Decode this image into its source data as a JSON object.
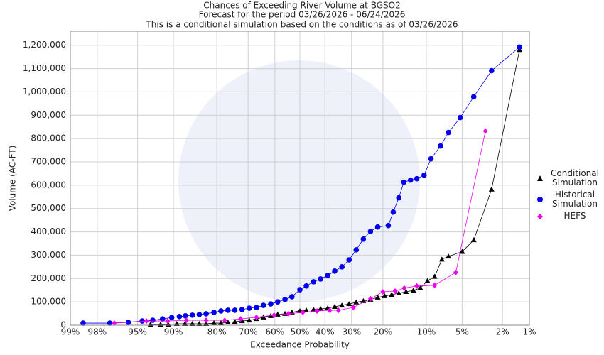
{
  "chart_data": {
    "type": "line",
    "title": "Chances of Exceeding River Volume at BGSO2",
    "subtitle": "Forecast for the period 03/26/2026 - 06/24/2026",
    "note": "This is a conditional simulation based on the conditions as of 03/26/2026",
    "x_label": "Exceedance Probability",
    "y_label": "Volume (AC-FT)",
    "x_scale": "probability",
    "xlim": [
      99,
      1
    ],
    "xticks": [
      {
        "value": 99,
        "label": "99%"
      },
      {
        "value": 98,
        "label": "98%"
      },
      {
        "value": 95,
        "label": "95%"
      },
      {
        "value": 90,
        "label": "90%"
      },
      {
        "value": 80,
        "label": "80%"
      },
      {
        "value": 70,
        "label": "70%"
      },
      {
        "value": 60,
        "label": "60%"
      },
      {
        "value": 50,
        "label": "50%"
      },
      {
        "value": 40,
        "label": "40%"
      },
      {
        "value": 30,
        "label": "30%"
      },
      {
        "value": 20,
        "label": "20%"
      },
      {
        "value": 10,
        "label": "10%"
      },
      {
        "value": 5,
        "label": "5%"
      },
      {
        "value": 2,
        "label": "2%"
      },
      {
        "value": 1,
        "label": "1%"
      }
    ],
    "ylim": [
      0,
      1260000
    ],
    "yticks": [
      0,
      {
        "value": 100000,
        "label": "100,000"
      },
      {
        "value": 200000,
        "label": "200,000"
      },
      {
        "value": 300000,
        "label": "300,000"
      },
      {
        "value": 400000,
        "label": "400,000"
      },
      {
        "value": 500000,
        "label": "500,000"
      },
      {
        "value": 600000,
        "label": "600,000"
      },
      {
        "value": 700000,
        "label": "700,000"
      },
      {
        "value": 800000,
        "label": "800,000"
      },
      {
        "value": 900000,
        "label": "900,000"
      },
      {
        "value": 1000000,
        "label": "1,000,000"
      },
      {
        "value": 1100000,
        "label": "1,100,000"
      },
      {
        "value": 1200000,
        "label": "1,200,000"
      }
    ],
    "grid": true,
    "legend": "right",
    "series": [
      {
        "name": "Conditional Simulation",
        "color": "#000000",
        "marker": "triangle",
        "x": [
          93.5,
          92.1,
          90.9,
          89.4,
          87.8,
          86.2,
          84.6,
          82.9,
          80.8,
          78.8,
          76.7,
          74.5,
          72.1,
          69.6,
          67.0,
          64.4,
          61.6,
          58.9,
          56.0,
          53.2,
          50,
          47.4,
          44.5,
          41.7,
          38.9,
          36.2,
          33.5,
          30.9,
          28.4,
          26.0,
          23.7,
          21.5,
          19.5,
          17.6,
          15.8,
          14.1,
          12.5,
          11.1,
          9.8,
          8.6,
          7.5,
          6.6,
          5.0,
          3.9,
          2.6,
          1.3
        ],
        "values": [
          3000,
          3000,
          3000,
          6000,
          6000,
          6000,
          6000,
          6000,
          9000,
          9000,
          12000,
          15000,
          18000,
          21000,
          27000,
          34000,
          40000,
          46000,
          49000,
          55000,
          61000,
          64000,
          67000,
          70000,
          73000,
          79000,
          85000,
          91000,
          98000,
          104000,
          110000,
          119000,
          125000,
          131000,
          137000,
          143000,
          149000,
          159000,
          190000,
          208000,
          282000,
          295000,
          315000,
          365000,
          582000,
          1180000
        ]
      },
      {
        "name": "Historical Simulation",
        "color": "#0000ee",
        "marker": "circle",
        "x": [
          98.6,
          97.3,
          95.9,
          94.5,
          93.2,
          91.8,
          90.3,
          88.9,
          87.7,
          86.2,
          84.6,
          82.9,
          80.8,
          78.8,
          76.7,
          74.5,
          72.1,
          69.6,
          67.0,
          64.4,
          61.6,
          58.9,
          56.0,
          53.2,
          50,
          47.4,
          44.5,
          41.7,
          38.9,
          36.2,
          33.5,
          30.9,
          28.4,
          26.0,
          23.7,
          21.5,
          18.5,
          17.2,
          15.8,
          14.6,
          13.1,
          11.8,
          10.4,
          9.2,
          7.7,
          6.6,
          5.2,
          3.9,
          2.6,
          1.3
        ],
        "values": [
          9000,
          9000,
          12000,
          18000,
          21000,
          27000,
          33000,
          37000,
          40000,
          43000,
          46000,
          49000,
          55000,
          61000,
          64000,
          64000,
          67000,
          73000,
          76000,
          85000,
          91000,
          100000,
          110000,
          122000,
          152000,
          168000,
          186000,
          198000,
          213000,
          232000,
          250000,
          280000,
          323000,
          369000,
          402000,
          421000,
          427000,
          485000,
          546000,
          613000,
          622000,
          628000,
          643000,
          713000,
          768000,
          826000,
          890000,
          979000,
          1091000,
          1192000
        ]
      },
      {
        "name": "HEFS",
        "color": "#ee00ee",
        "marker": "diamond",
        "x": [
          97.0,
          94.0,
          91.0,
          87.5,
          82.9,
          77.7,
          72.6,
          67.0,
          60.3,
          54.6,
          48.8,
          43.1,
          38.1,
          34.8,
          29.4,
          23.7,
          20.0,
          16.7,
          14.5,
          11.8,
          8.6,
          5.7,
          3.0
        ],
        "values": [
          9000,
          18000,
          18000,
          21000,
          21000,
          21000,
          27000,
          34000,
          43000,
          49000,
          55000,
          61000,
          64000,
          64000,
          76000,
          113000,
          143000,
          146000,
          159000,
          168000,
          171000,
          226000,
          832000
        ]
      }
    ]
  }
}
